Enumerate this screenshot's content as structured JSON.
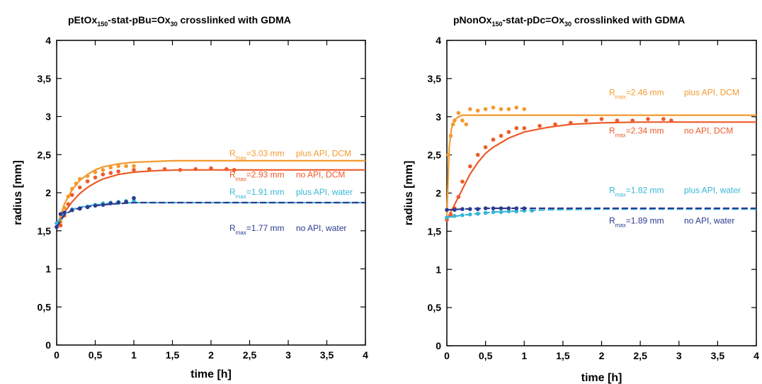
{
  "chart_data": [
    {
      "type": "scatter",
      "title": {
        "parts": [
          {
            "t": "pEtOx",
            "s": "n"
          },
          {
            "t": "150",
            "s": "sub"
          },
          {
            "t": "-stat-pBu",
            "s": "n"
          },
          {
            "t": "=",
            "s": "n"
          },
          {
            "t": "Ox",
            "s": "n"
          },
          {
            "t": "30",
            "s": "sub"
          },
          {
            "t": " crosslinked with GDMA",
            "s": "n"
          }
        ]
      },
      "xlabel": "time [h]",
      "ylabel": "radius [mm]",
      "xlim": [
        0,
        4
      ],
      "ylim": [
        0,
        4
      ],
      "x_ticks": [
        "0",
        "0,5",
        "1",
        "1,5",
        "2",
        "2,5",
        "3",
        "3,5",
        "4"
      ],
      "y_ticks": [
        "0",
        "0,5",
        "1",
        "1,5",
        "2",
        "2,5",
        "3",
        "3,5",
        "4"
      ],
      "grid": false,
      "series": [
        {
          "name": "plus API, DCM",
          "color": "#f39a2e",
          "r_max": "3.03 mm",
          "points": [
            [
              0,
              1.55
            ],
            [
              0.05,
              1.62
            ],
            [
              0.1,
              1.8
            ],
            [
              0.15,
              1.95
            ],
            [
              0.2,
              2.05
            ],
            [
              0.25,
              2.12
            ],
            [
              0.3,
              2.18
            ],
            [
              0.4,
              2.22
            ],
            [
              0.5,
              2.27
            ],
            [
              0.6,
              2.3
            ],
            [
              0.7,
              2.33
            ],
            [
              0.8,
              2.35
            ],
            [
              0.9,
              2.35
            ],
            [
              1.0,
              2.35
            ]
          ],
          "fit": [
            [
              0,
              1.55
            ],
            [
              0.1,
              1.85
            ],
            [
              0.2,
              2.04
            ],
            [
              0.3,
              2.16
            ],
            [
              0.4,
              2.24
            ],
            [
              0.5,
              2.3
            ],
            [
              0.6,
              2.34
            ],
            [
              0.8,
              2.38
            ],
            [
              1.0,
              2.4
            ],
            [
              1.5,
              2.42
            ],
            [
              2,
              2.42
            ],
            [
              4,
              2.42
            ]
          ]
        },
        {
          "name": "no API, DCM",
          "color": "#ee5a28",
          "r_max": "2.93 mm",
          "points": [
            [
              0,
              1.55
            ],
            [
              0.05,
              1.57
            ],
            [
              0.1,
              1.7
            ],
            [
              0.15,
              1.85
            ],
            [
              0.2,
              1.97
            ],
            [
              0.3,
              2.07
            ],
            [
              0.4,
              2.15
            ],
            [
              0.5,
              2.2
            ],
            [
              0.6,
              2.24
            ],
            [
              0.7,
              2.26
            ],
            [
              0.8,
              2.28
            ],
            [
              1.0,
              2.3
            ],
            [
              1.2,
              2.31
            ],
            [
              1.4,
              2.31
            ],
            [
              1.6,
              2.3
            ],
            [
              1.8,
              2.31
            ],
            [
              2.0,
              2.32
            ],
            [
              2.2,
              2.31
            ],
            [
              2.3,
              2.3
            ]
          ],
          "fit": [
            [
              0,
              1.55
            ],
            [
              0.1,
              1.74
            ],
            [
              0.2,
              1.88
            ],
            [
              0.3,
              1.99
            ],
            [
              0.4,
              2.07
            ],
            [
              0.5,
              2.13
            ],
            [
              0.6,
              2.18
            ],
            [
              0.8,
              2.24
            ],
            [
              1.0,
              2.27
            ],
            [
              1.3,
              2.29
            ],
            [
              1.6,
              2.3
            ],
            [
              2,
              2.3
            ],
            [
              4,
              2.3
            ]
          ]
        },
        {
          "name": "plus API, water",
          "color": "#35b6d6",
          "r_max": "1.91 mm",
          "points": [
            [
              0,
              1.6
            ],
            [
              0.1,
              1.73
            ],
            [
              0.2,
              1.78
            ],
            [
              0.3,
              1.8
            ],
            [
              0.4,
              1.82
            ],
            [
              0.5,
              1.84
            ],
            [
              0.6,
              1.86
            ],
            [
              0.7,
              1.87
            ],
            [
              0.8,
              1.88
            ],
            [
              0.9,
              1.89
            ],
            [
              1.0,
              1.9
            ]
          ],
          "fit": [
            [
              0,
              1.6
            ],
            [
              0.1,
              1.72
            ],
            [
              0.2,
              1.78
            ],
            [
              0.3,
              1.81
            ],
            [
              0.5,
              1.84
            ],
            [
              0.7,
              1.86
            ],
            [
              1,
              1.87
            ],
            [
              2,
              1.87
            ],
            [
              4,
              1.87
            ]
          ]
        },
        {
          "name": "no API, water",
          "color": "#2b3a8f",
          "r_max": "1.77 mm",
          "points": [
            [
              0,
              1.55
            ],
            [
              0.05,
              1.72
            ],
            [
              0.1,
              1.74
            ],
            [
              0.2,
              1.77
            ],
            [
              0.3,
              1.79
            ],
            [
              0.4,
              1.81
            ],
            [
              0.5,
              1.83
            ],
            [
              0.6,
              1.84
            ],
            [
              0.7,
              1.86
            ],
            [
              0.8,
              1.87
            ],
            [
              0.9,
              1.88
            ],
            [
              1.0,
              1.93
            ]
          ],
          "fit": [
            [
              0,
              1.55
            ],
            [
              0.1,
              1.71
            ],
            [
              0.2,
              1.77
            ],
            [
              0.3,
              1.8
            ],
            [
              0.5,
              1.83
            ],
            [
              0.7,
              1.85
            ],
            [
              1,
              1.87
            ],
            [
              2,
              1.87
            ],
            [
              4,
              1.87
            ]
          ]
        }
      ],
      "annotations": [
        {
          "prefix": "R",
          "sub": "max",
          "value": "=3.03 mm",
          "label": "plus API, DCM",
          "color": "#f39a2e",
          "y": 2.48
        },
        {
          "prefix": "R",
          "sub": "max",
          "value": "=2.93 mm",
          "label": "no API, DCM",
          "color": "#ee5a28",
          "y": 2.2
        },
        {
          "prefix": "R",
          "sub": "max",
          "value": "=1.91 mm",
          "label": "plus API, water",
          "color": "#35b6d6",
          "y": 1.97
        },
        {
          "prefix": "R",
          "sub": "max",
          "value": "=1.77 mm",
          "label": "no API, water",
          "color": "#2b3a8f",
          "y": 1.5
        }
      ]
    },
    {
      "type": "scatter",
      "title": {
        "parts": [
          {
            "t": "pNonOx",
            "s": "n"
          },
          {
            "t": "150",
            "s": "sub"
          },
          {
            "t": "-stat-pDc",
            "s": "n"
          },
          {
            "t": "=",
            "s": "n"
          },
          {
            "t": "Ox",
            "s": "n"
          },
          {
            "t": "30",
            "s": "sub"
          },
          {
            "t": " crosslinked with GDMA",
            "s": "n"
          }
        ]
      },
      "xlabel": "time [h]",
      "ylabel": "radius [mm]",
      "xlim": [
        0,
        4
      ],
      "ylim": [
        0,
        4
      ],
      "x_ticks": [
        "0",
        "0,5",
        "1",
        "1,5",
        "2",
        "2,5",
        "3",
        "3,5",
        "4"
      ],
      "y_ticks": [
        "0",
        "0,5",
        "1",
        "1,5",
        "2",
        "2,5",
        "3",
        "3,5",
        "4"
      ],
      "grid": false,
      "series": [
        {
          "name": "plus API, DCM",
          "color": "#f39a2e",
          "r_max": "2.46 mm",
          "points": [
            [
              0.02,
              2.5
            ],
            [
              0.05,
              2.75
            ],
            [
              0.08,
              2.9
            ],
            [
              0.1,
              2.95
            ],
            [
              0.15,
              3.05
            ],
            [
              0.2,
              2.95
            ],
            [
              0.25,
              2.9
            ],
            [
              0.3,
              3.1
            ],
            [
              0.4,
              3.08
            ],
            [
              0.5,
              3.1
            ],
            [
              0.6,
              3.12
            ],
            [
              0.7,
              3.1
            ],
            [
              0.8,
              3.1
            ],
            [
              0.9,
              3.12
            ],
            [
              1.0,
              3.1
            ]
          ],
          "fit": [
            [
              0,
              1.7
            ],
            [
              0.03,
              2.6
            ],
            [
              0.06,
              2.85
            ],
            [
              0.1,
              2.96
            ],
            [
              0.15,
              3.0
            ],
            [
              0.2,
              3.02
            ],
            [
              0.3,
              3.02
            ],
            [
              4,
              3.02
            ]
          ]
        },
        {
          "name": "no API, DCM",
          "color": "#ee5a28",
          "r_max": "2.34 mm",
          "points": [
            [
              0,
              1.65
            ],
            [
              0.05,
              1.72
            ],
            [
              0.1,
              1.8
            ],
            [
              0.15,
              1.95
            ],
            [
              0.2,
              2.15
            ],
            [
              0.3,
              2.35
            ],
            [
              0.4,
              2.5
            ],
            [
              0.5,
              2.6
            ],
            [
              0.6,
              2.7
            ],
            [
              0.7,
              2.75
            ],
            [
              0.8,
              2.8
            ],
            [
              0.9,
              2.85
            ],
            [
              1.0,
              2.85
            ],
            [
              1.2,
              2.88
            ],
            [
              1.4,
              2.9
            ],
            [
              1.6,
              2.92
            ],
            [
              1.8,
              2.95
            ],
            [
              2.0,
              2.97
            ],
            [
              2.2,
              2.95
            ],
            [
              2.4,
              2.95
            ],
            [
              2.6,
              2.97
            ],
            [
              2.8,
              2.97
            ],
            [
              2.9,
              2.95
            ]
          ],
          "fit": [
            [
              0,
              1.65
            ],
            [
              0.1,
              1.85
            ],
            [
              0.2,
              2.05
            ],
            [
              0.3,
              2.25
            ],
            [
              0.4,
              2.4
            ],
            [
              0.5,
              2.52
            ],
            [
              0.6,
              2.6
            ],
            [
              0.8,
              2.72
            ],
            [
              1.0,
              2.8
            ],
            [
              1.3,
              2.86
            ],
            [
              1.6,
              2.9
            ],
            [
              2,
              2.92
            ],
            [
              2.5,
              2.93
            ],
            [
              4,
              2.93
            ]
          ]
        },
        {
          "name": "plus API, water",
          "color": "#35b6d6",
          "r_max": "1.82 mm",
          "points": [
            [
              0,
              1.68
            ],
            [
              0.1,
              1.7
            ],
            [
              0.2,
              1.71
            ],
            [
              0.3,
              1.72
            ],
            [
              0.4,
              1.73
            ],
            [
              0.5,
              1.74
            ],
            [
              0.6,
              1.75
            ],
            [
              0.7,
              1.75
            ],
            [
              0.8,
              1.76
            ],
            [
              0.9,
              1.76
            ],
            [
              1.0,
              1.77
            ],
            [
              1.1,
              1.77
            ]
          ],
          "fit": [
            [
              0,
              1.68
            ],
            [
              0.2,
              1.71
            ],
            [
              0.4,
              1.73
            ],
            [
              0.6,
              1.75
            ],
            [
              0.8,
              1.76
            ],
            [
              1,
              1.77
            ],
            [
              1.3,
              1.78
            ],
            [
              2,
              1.79
            ],
            [
              4,
              1.79
            ]
          ]
        },
        {
          "name": "no API, water",
          "color": "#2b3a8f",
          "r_max": "1.89 mm",
          "points": [
            [
              0,
              1.78
            ],
            [
              0.1,
              1.78
            ],
            [
              0.2,
              1.79
            ],
            [
              0.3,
              1.79
            ],
            [
              0.4,
              1.79
            ],
            [
              0.5,
              1.8
            ],
            [
              0.6,
              1.8
            ],
            [
              0.7,
              1.8
            ],
            [
              0.8,
              1.8
            ],
            [
              0.9,
              1.8
            ],
            [
              1.0,
              1.8
            ]
          ],
          "fit": [
            [
              0,
              1.78
            ],
            [
              0.2,
              1.79
            ],
            [
              0.5,
              1.8
            ],
            [
              1,
              1.8
            ],
            [
              4,
              1.8
            ]
          ]
        }
      ],
      "annotations": [
        {
          "prefix": "R",
          "sub": "max",
          "value": "=2.46 mm",
          "label": "plus API, DCM",
          "color": "#f39a2e",
          "y": 3.28
        },
        {
          "prefix": "R",
          "sub": "max",
          "value": "=2.34 mm",
          "label": "no API, DCM",
          "color": "#ee5a28",
          "y": 2.78
        },
        {
          "prefix": "R",
          "sub": "max",
          "value": "=1.82 mm",
          "label": "plus API, water",
          "color": "#35b6d6",
          "y": 2.0
        },
        {
          "prefix": "R",
          "sub": "max",
          "value": "=1.89 mm",
          "label": "no API, water",
          "color": "#2b3a8f",
          "y": 1.6
        }
      ]
    }
  ]
}
